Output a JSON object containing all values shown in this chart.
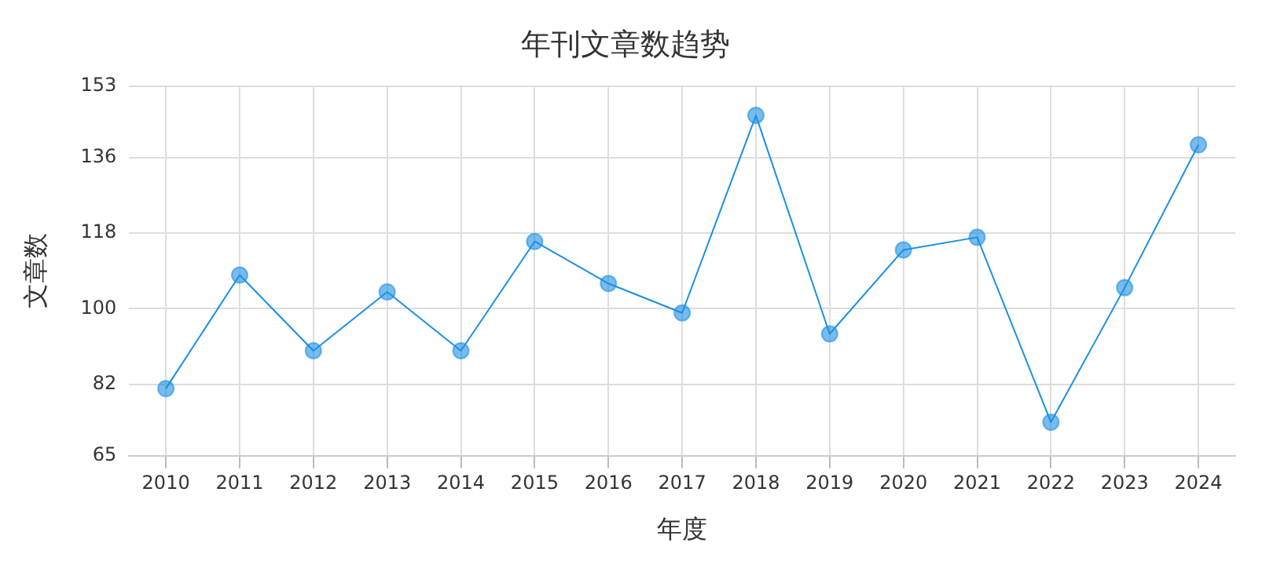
{
  "chart_data": {
    "type": "line",
    "title": "年刊文章数趋势",
    "xlabel": "年度",
    "ylabel": "文章数",
    "categories": [
      "2010",
      "2011",
      "2012",
      "2013",
      "2014",
      "2015",
      "2016",
      "2017",
      "2018",
      "2019",
      "2020",
      "2021",
      "2022",
      "2023",
      "2024"
    ],
    "series": [
      {
        "color": "#1a8fe3",
        "values": [
          81,
          108,
          90,
          104,
          90,
          116,
          106,
          99,
          146,
          94,
          114,
          117,
          73,
          105,
          139
        ]
      }
    ],
    "ylim": [
      65,
      153
    ],
    "yticks": [
      65,
      82,
      100,
      118,
      136,
      153
    ],
    "grid": true,
    "marker": "circle",
    "line_style": "solid",
    "legend": false
  }
}
